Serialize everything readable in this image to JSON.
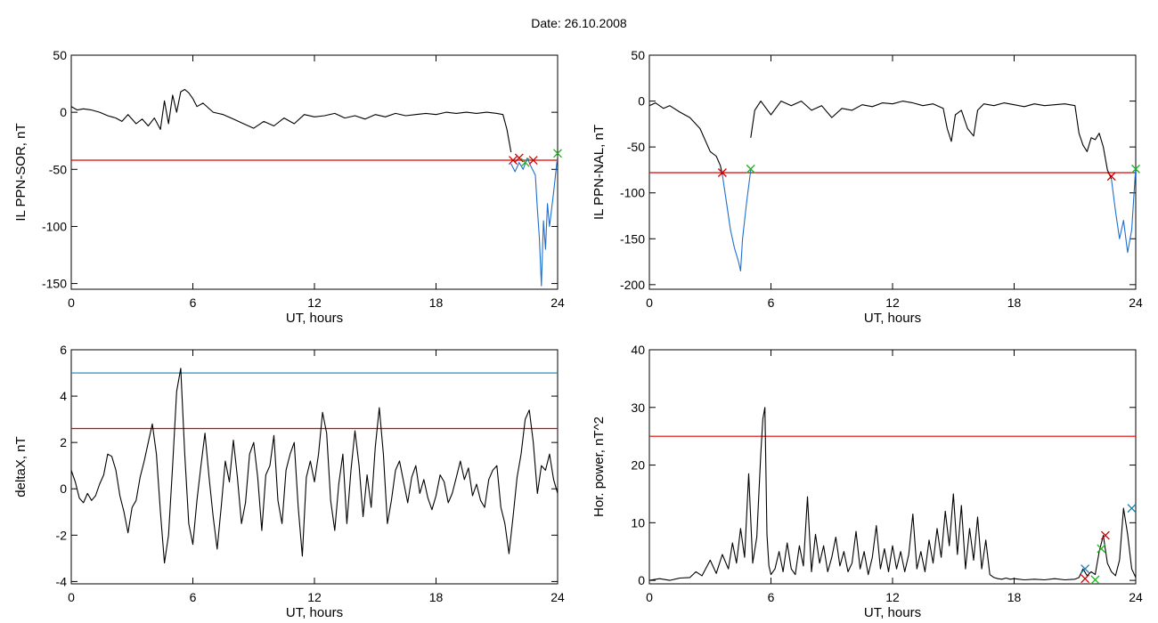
{
  "page": {
    "title": "Date:  26.10.2008"
  },
  "colors": {
    "trace": "#000000",
    "threshold": "#e00000",
    "upper_threshold": "#1a7fb0",
    "event": "#1f6fd0",
    "start_marker": "#d00000",
    "end_marker": "#20b020"
  },
  "chart_data": [
    {
      "id": "sor",
      "type": "line",
      "xlabel": "UT, hours",
      "ylabel": "IL PPN-SOR, nT",
      "xlim": [
        0,
        24
      ],
      "ylim": [
        -155,
        50
      ],
      "xticks": [
        0,
        6,
        12,
        18,
        24
      ],
      "yticks": [
        -150,
        -100,
        -50,
        0,
        50
      ],
      "grid": false,
      "series": [
        {
          "color": "#000000",
          "x": [
            0,
            0.3,
            0.6,
            1,
            1.4,
            1.8,
            2.2,
            2.5,
            2.8,
            3.2,
            3.5,
            3.8,
            4.1,
            4.4,
            4.6,
            4.8,
            5.0,
            5.2,
            5.4,
            5.6,
            5.8,
            6.0,
            6.2,
            6.5,
            7,
            7.5,
            8,
            8.5,
            9,
            9.5,
            10,
            10.5,
            11,
            11.5,
            12,
            12.5,
            13,
            13.5,
            14,
            14.5,
            15,
            15.5,
            16,
            16.5,
            17,
            17.5,
            18,
            18.5,
            19,
            19.5,
            20,
            20.5,
            21,
            21.3,
            21.5,
            21.7
          ],
          "y": [
            5,
            2,
            3,
            2,
            0,
            -3,
            -5,
            -8,
            -2,
            -10,
            -6,
            -12,
            -5,
            -15,
            10,
            -10,
            15,
            0,
            18,
            20,
            17,
            12,
            5,
            8,
            0,
            -2,
            -6,
            -10,
            -14,
            -8,
            -12,
            -5,
            -10,
            -2,
            -4,
            -3,
            -1,
            -5,
            -3,
            -6,
            -2,
            -4,
            -1,
            -3,
            -2,
            -1,
            -2,
            0,
            -1,
            0,
            -1,
            0,
            -1,
            -2,
            -15,
            -35
          ]
        },
        {
          "color": "#1f6fd0",
          "x": [
            21.7,
            21.9,
            22.1,
            22.3,
            22.5,
            22.7,
            22.9,
            23.0,
            23.1,
            23.2,
            23.3,
            23.4,
            23.5,
            23.6,
            23.8,
            24.0
          ],
          "y": [
            -45,
            -52,
            -44,
            -50,
            -40,
            -48,
            -55,
            -85,
            -110,
            -152,
            -95,
            -120,
            -80,
            -100,
            -70,
            -38
          ]
        }
      ],
      "threshold": -42,
      "markers": [
        {
          "x": 21.8,
          "y": -42,
          "color": "#d00000"
        },
        {
          "x": 22.1,
          "y": -40,
          "color": "#d00000"
        },
        {
          "x": 22.4,
          "y": -44,
          "color": "#20b020"
        },
        {
          "x": 22.8,
          "y": -42,
          "color": "#d00000"
        },
        {
          "x": 24.0,
          "y": -36,
          "color": "#20b020"
        }
      ]
    },
    {
      "id": "nal",
      "type": "line",
      "xlabel": "UT, hours",
      "ylabel": "IL PPN-NAL, nT",
      "xlim": [
        0,
        24
      ],
      "ylim": [
        -205,
        50
      ],
      "xticks": [
        0,
        6,
        12,
        18,
        24
      ],
      "yticks": [
        -200,
        -150,
        -100,
        -50,
        0,
        50
      ],
      "grid": false,
      "series": [
        {
          "color": "#000000",
          "x": [
            0,
            0.3,
            0.7,
            1,
            1.5,
            2,
            2.5,
            3,
            3.3,
            3.5,
            3.6
          ],
          "y": [
            -5,
            -2,
            -8,
            -5,
            -12,
            -18,
            -30,
            -55,
            -60,
            -70,
            -80
          ]
        },
        {
          "color": "#1f6fd0",
          "x": [
            3.6,
            3.8,
            4.0,
            4.2,
            4.4,
            4.5,
            4.6,
            4.8,
            5.0
          ],
          "y": [
            -80,
            -110,
            -140,
            -160,
            -175,
            -185,
            -150,
            -110,
            -75
          ]
        },
        {
          "color": "#000000",
          "x": [
            5.0,
            5.2,
            5.5,
            6,
            6.5,
            7,
            7.5,
            8,
            8.5,
            9,
            9.5,
            10,
            10.5,
            11,
            11.5,
            12,
            12.5,
            13,
            13.5,
            14,
            14.5,
            14.7,
            14.9,
            15.1,
            15.4,
            15.7,
            16,
            16.2,
            16.5,
            17,
            17.5,
            18,
            18.5,
            19,
            19.5,
            20,
            20.5,
            21,
            21.2,
            21.4,
            21.6,
            21.8,
            22.0,
            22.2,
            22.4,
            22.6,
            22.8
          ],
          "y": [
            -40,
            -10,
            0,
            -15,
            0,
            -5,
            0,
            -10,
            -5,
            -18,
            -8,
            -10,
            -4,
            -6,
            -2,
            -3,
            0,
            -2,
            -5,
            -3,
            -8,
            -30,
            -44,
            -15,
            -10,
            -30,
            -38,
            -10,
            -3,
            -5,
            -2,
            -4,
            -6,
            -3,
            -5,
            -4,
            -3,
            -5,
            -35,
            -48,
            -55,
            -40,
            -42,
            -35,
            -50,
            -75,
            -85
          ]
        },
        {
          "color": "#1f6fd0",
          "x": [
            22.8,
            23.0,
            23.2,
            23.4,
            23.6,
            23.8,
            24.0
          ],
          "y": [
            -85,
            -120,
            -150,
            -130,
            -165,
            -140,
            -72
          ]
        }
      ],
      "threshold": -78,
      "markers": [
        {
          "x": 3.6,
          "y": -78,
          "color": "#d00000"
        },
        {
          "x": 5.0,
          "y": -74,
          "color": "#20b020"
        },
        {
          "x": 22.8,
          "y": -82,
          "color": "#d00000"
        },
        {
          "x": 24.0,
          "y": -74,
          "color": "#20b020"
        }
      ]
    },
    {
      "id": "deltax",
      "type": "line",
      "xlabel": "UT, hours",
      "ylabel": "deltaX, nT",
      "xlim": [
        0,
        24
      ],
      "ylim": [
        -4.1,
        6
      ],
      "xticks": [
        0,
        6,
        12,
        18,
        24
      ],
      "yticks": [
        -4,
        -2,
        0,
        2,
        4,
        6
      ],
      "grid": false,
      "series": [
        {
          "color": "#000000",
          "x": [
            0,
            0.2,
            0.4,
            0.6,
            0.8,
            1,
            1.2,
            1.4,
            1.6,
            1.8,
            2,
            2.2,
            2.4,
            2.6,
            2.8,
            3,
            3.2,
            3.4,
            3.6,
            3.8,
            4,
            4.2,
            4.4,
            4.6,
            4.8,
            5,
            5.2,
            5.4,
            5.6,
            5.8,
            6,
            6.2,
            6.4,
            6.6,
            6.8,
            7,
            7.2,
            7.4,
            7.6,
            7.8,
            8,
            8.2,
            8.4,
            8.6,
            8.8,
            9,
            9.2,
            9.4,
            9.6,
            9.8,
            10,
            10.2,
            10.4,
            10.6,
            10.8,
            11,
            11.2,
            11.4,
            11.6,
            11.8,
            12,
            12.2,
            12.4,
            12.6,
            12.8,
            13,
            13.2,
            13.4,
            13.6,
            13.8,
            14,
            14.2,
            14.4,
            14.6,
            14.8,
            15,
            15.2,
            15.4,
            15.6,
            15.8,
            16,
            16.2,
            16.4,
            16.6,
            16.8,
            17,
            17.2,
            17.4,
            17.6,
            17.8,
            18,
            18.2,
            18.4,
            18.6,
            18.8,
            19,
            19.2,
            19.4,
            19.6,
            19.8,
            20,
            20.2,
            20.4,
            20.6,
            20.8,
            21,
            21.2,
            21.4,
            21.6,
            21.8,
            22,
            22.2,
            22.4,
            22.6,
            22.8,
            23,
            23.2,
            23.4,
            23.6,
            23.8,
            24
          ],
          "y": [
            0.8,
            0.3,
            -0.4,
            -0.6,
            -0.2,
            -0.5,
            -0.3,
            0.2,
            0.6,
            1.5,
            1.4,
            0.8,
            -0.3,
            -1.0,
            -1.9,
            -0.8,
            -0.5,
            0.5,
            1.2,
            2.0,
            2.8,
            1.5,
            -1.0,
            -3.2,
            -2.0,
            1.0,
            4.2,
            5.2,
            1.5,
            -1.5,
            -2.4,
            -0.5,
            1.0,
            2.4,
            0.5,
            -1.2,
            -2.6,
            -0.8,
            1.2,
            0.3,
            2.1,
            0.5,
            -1.5,
            -0.6,
            1.5,
            2.0,
            0.5,
            -1.8,
            0.6,
            1.0,
            2.3,
            -0.5,
            -1.5,
            0.8,
            1.5,
            2.0,
            -0.8,
            -2.9,
            0.5,
            1.2,
            0.3,
            1.5,
            3.3,
            2.4,
            -0.5,
            -1.8,
            0.2,
            1.5,
            -1.5,
            0.8,
            2.5,
            1.0,
            -1.2,
            0.6,
            -0.8,
            1.8,
            3.5,
            1.5,
            -1.5,
            -0.5,
            0.8,
            1.2,
            0.3,
            -0.6,
            0.5,
            1.0,
            -0.2,
            0.4,
            -0.4,
            -0.9,
            -0.3,
            0.6,
            0.3,
            -0.6,
            -0.2,
            0.5,
            1.2,
            0.4,
            0.9,
            -0.3,
            0.2,
            -0.5,
            -0.8,
            0.4,
            0.8,
            1.0,
            -0.8,
            -1.5,
            -2.8,
            -1.2,
            0.5,
            1.5,
            3.0,
            3.4,
            2.0,
            -0.2,
            1.0,
            0.8,
            1.5,
            0.4,
            -0.2
          ]
        }
      ],
      "threshold": 2.6,
      "upper_threshold": 5.0,
      "markers": []
    },
    {
      "id": "hpower",
      "type": "line",
      "xlabel": "UT, hours",
      "ylabel": "Hor. power, nT^2",
      "xlim": [
        0,
        24
      ],
      "ylim": [
        -0.6,
        40
      ],
      "xticks": [
        0,
        6,
        12,
        18,
        24
      ],
      "yticks": [
        0,
        10,
        20,
        30,
        40
      ],
      "grid": false,
      "series": [
        {
          "color": "#000000",
          "x": [
            0,
            0.5,
            1,
            1.5,
            2,
            2.3,
            2.6,
            3,
            3.3,
            3.6,
            3.9,
            4.1,
            4.3,
            4.5,
            4.7,
            4.9,
            5.1,
            5.3,
            5.5,
            5.6,
            5.7,
            5.8,
            5.9,
            6.0,
            6.2,
            6.4,
            6.6,
            6.8,
            7.0,
            7.2,
            7.4,
            7.6,
            7.8,
            8.0,
            8.2,
            8.4,
            8.6,
            8.8,
            9.0,
            9.2,
            9.4,
            9.6,
            9.8,
            10.0,
            10.2,
            10.4,
            10.6,
            10.8,
            11.0,
            11.2,
            11.4,
            11.6,
            11.8,
            12.0,
            12.2,
            12.4,
            12.6,
            12.8,
            13.0,
            13.2,
            13.4,
            13.6,
            13.8,
            14.0,
            14.2,
            14.4,
            14.6,
            14.8,
            15.0,
            15.2,
            15.4,
            15.6,
            15.8,
            16.0,
            16.2,
            16.4,
            16.6,
            16.8,
            17.0,
            17.2,
            17.4,
            17.6,
            17.8,
            18.0,
            18.5,
            19,
            19.5,
            20,
            20.5,
            21,
            21.2,
            21.4,
            21.6,
            21.8,
            22.0,
            22.2,
            22.4,
            22.6,
            22.8,
            23.0,
            23.2,
            23.4,
            23.6,
            23.8,
            24
          ],
          "y": [
            0,
            0.3,
            0,
            0.4,
            0.5,
            1.5,
            0.8,
            3.5,
            1.2,
            4.5,
            2.0,
            6.5,
            3.0,
            9.0,
            4.0,
            18.5,
            3.0,
            7.5,
            22,
            28,
            30,
            8,
            2.5,
            1.0,
            2.0,
            5.0,
            1.5,
            6.5,
            2.0,
            1.0,
            6.0,
            2.5,
            14.5,
            1.5,
            8.0,
            3.0,
            6.0,
            1.5,
            4.0,
            7.5,
            2.5,
            5.0,
            1.5,
            3.0,
            8.5,
            2.0,
            5.0,
            1.0,
            4.0,
            9.5,
            2.0,
            5.5,
            1.5,
            6.0,
            2.0,
            5.0,
            1.5,
            4.5,
            11.5,
            2.0,
            5.0,
            1.5,
            7.0,
            3.0,
            9.0,
            4.0,
            12.0,
            6.0,
            15.0,
            4.5,
            13.0,
            2.0,
            9.0,
            3.5,
            11.0,
            2.0,
            7.0,
            1.0,
            0.5,
            0.3,
            0.2,
            0.4,
            0.2,
            0.3,
            0.1,
            0.2,
            0.1,
            0.3,
            0.1,
            0.2,
            0.5,
            2.0,
            0.8,
            1.5,
            1.0,
            5.0,
            7.8,
            3.0,
            1.5,
            0.8,
            3.5,
            12.5,
            8.0,
            2.0,
            0.5
          ]
        }
      ],
      "threshold": 25,
      "markers": [
        {
          "x": 21.5,
          "y": 0.3,
          "color": "#d00000"
        },
        {
          "x": 21.5,
          "y": 2.0,
          "color": "#1a7fb0"
        },
        {
          "x": 22.0,
          "y": 0.1,
          "color": "#20b020"
        },
        {
          "x": 22.3,
          "y": 5.5,
          "color": "#20b020"
        },
        {
          "x": 22.5,
          "y": 7.8,
          "color": "#d00000"
        },
        {
          "x": 23.8,
          "y": 12.5,
          "color": "#1a7fb0"
        }
      ]
    }
  ]
}
